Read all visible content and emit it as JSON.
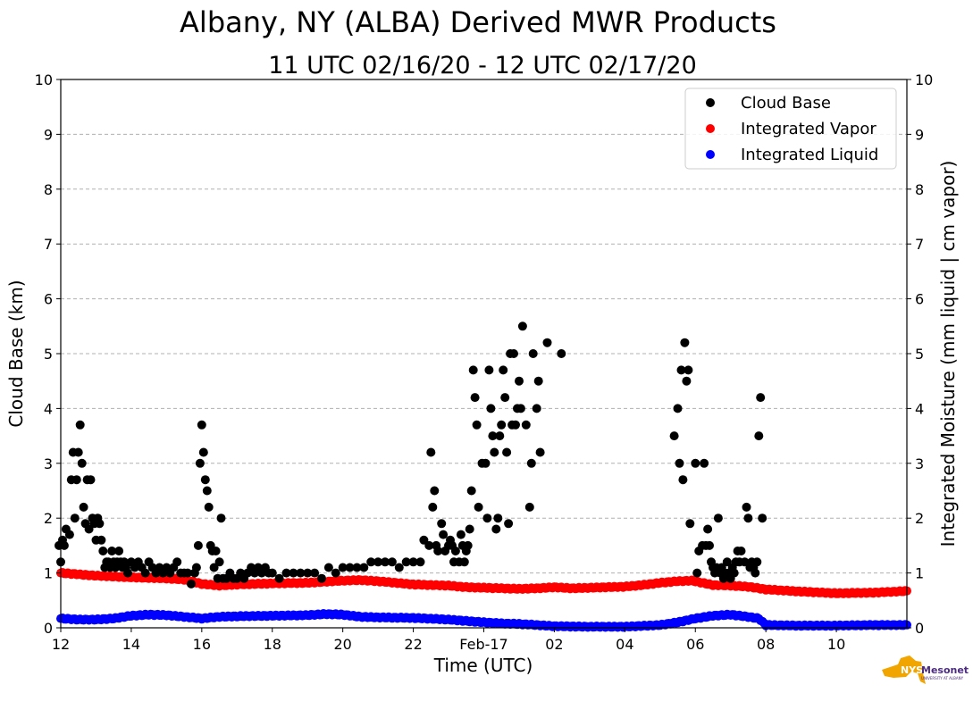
{
  "chart_data": {
    "type": "scatter",
    "title": "Albany, NY (ALBA) Derived MWR Products",
    "subtitle": "11 UTC 02/16/20 - 12 UTC 02/17/20",
    "xlabel": "Time (UTC)",
    "ylabel_left": "Cloud Base (km)",
    "ylabel_right": "Integrated Moisture (mm liquid | cm vapor)",
    "x_unit": "hours since 12 UTC 02/16/20",
    "xlim": [
      0,
      24
    ],
    "ylim": [
      0,
      10
    ],
    "grid": true,
    "legend_position": "top-right",
    "x_ticks": [
      {
        "x": 0,
        "label": "12"
      },
      {
        "x": 2,
        "label": "14"
      },
      {
        "x": 4,
        "label": "16"
      },
      {
        "x": 6,
        "label": "18"
      },
      {
        "x": 8,
        "label": "20"
      },
      {
        "x": 10,
        "label": "22"
      },
      {
        "x": 12,
        "label": "Feb-17"
      },
      {
        "x": 14,
        "label": "02"
      },
      {
        "x": 16,
        "label": "04"
      },
      {
        "x": 18,
        "label": "06"
      },
      {
        "x": 20,
        "label": "08"
      },
      {
        "x": 22,
        "label": "10"
      }
    ],
    "y_ticks": [
      "0",
      "1",
      "2",
      "3",
      "4",
      "5",
      "6",
      "7",
      "8",
      "9",
      "10"
    ],
    "series": [
      {
        "name": "Cloud Base",
        "color": "#000000",
        "points": [
          [
            -0.05,
            1.5
          ],
          [
            0.0,
            1.2
          ],
          [
            0.05,
            1.6
          ],
          [
            0.1,
            1.5
          ],
          [
            0.15,
            1.8
          ],
          [
            0.25,
            1.7
          ],
          [
            0.3,
            2.7
          ],
          [
            0.35,
            3.2
          ],
          [
            0.4,
            2.0
          ],
          [
            0.45,
            2.7
          ],
          [
            0.5,
            3.2
          ],
          [
            0.55,
            3.7
          ],
          [
            0.6,
            3.0
          ],
          [
            0.65,
            2.2
          ],
          [
            0.7,
            1.9
          ],
          [
            0.75,
            2.7
          ],
          [
            0.8,
            1.8
          ],
          [
            0.85,
            2.7
          ],
          [
            0.9,
            2.0
          ],
          [
            0.95,
            1.9
          ],
          [
            1.0,
            1.6
          ],
          [
            1.05,
            2.0
          ],
          [
            1.1,
            1.9
          ],
          [
            1.15,
            1.6
          ],
          [
            1.2,
            1.4
          ],
          [
            1.25,
            1.1
          ],
          [
            1.3,
            1.2
          ],
          [
            1.35,
            1.2
          ],
          [
            1.4,
            1.1
          ],
          [
            1.45,
            1.4
          ],
          [
            1.5,
            1.2
          ],
          [
            1.55,
            1.1
          ],
          [
            1.6,
            1.2
          ],
          [
            1.65,
            1.4
          ],
          [
            1.7,
            1.2
          ],
          [
            1.75,
            1.1
          ],
          [
            1.8,
            1.2
          ],
          [
            1.85,
            1.1
          ],
          [
            1.9,
            1.0
          ],
          [
            2.0,
            1.2
          ],
          [
            2.1,
            1.1
          ],
          [
            2.2,
            1.2
          ],
          [
            2.3,
            1.1
          ],
          [
            2.4,
            1.0
          ],
          [
            2.5,
            1.2
          ],
          [
            2.6,
            1.1
          ],
          [
            2.7,
            1.0
          ],
          [
            2.8,
            1.1
          ],
          [
            2.9,
            1.0
          ],
          [
            3.0,
            1.1
          ],
          [
            3.1,
            1.0
          ],
          [
            3.2,
            1.1
          ],
          [
            3.3,
            1.2
          ],
          [
            3.4,
            1.0
          ],
          [
            3.5,
            1.0
          ],
          [
            3.6,
            1.0
          ],
          [
            3.7,
            0.8
          ],
          [
            3.8,
            1.0
          ],
          [
            3.85,
            1.1
          ],
          [
            3.9,
            1.5
          ],
          [
            3.95,
            3.0
          ],
          [
            4.0,
            3.7
          ],
          [
            4.05,
            3.2
          ],
          [
            4.1,
            2.7
          ],
          [
            4.15,
            2.5
          ],
          [
            4.2,
            2.2
          ],
          [
            4.25,
            1.5
          ],
          [
            4.3,
            1.4
          ],
          [
            4.35,
            1.1
          ],
          [
            4.4,
            1.4
          ],
          [
            4.45,
            0.9
          ],
          [
            4.5,
            1.2
          ],
          [
            4.55,
            2.0
          ],
          [
            4.6,
            0.9
          ],
          [
            4.7,
            0.9
          ],
          [
            4.8,
            1.0
          ],
          [
            4.9,
            0.9
          ],
          [
            5.0,
            0.9
          ],
          [
            5.1,
            1.0
          ],
          [
            5.2,
            0.9
          ],
          [
            5.3,
            1.0
          ],
          [
            5.4,
            1.1
          ],
          [
            5.5,
            1.0
          ],
          [
            5.6,
            1.1
          ],
          [
            5.7,
            1.0
          ],
          [
            5.8,
            1.1
          ],
          [
            5.9,
            1.0
          ],
          [
            6.0,
            1.0
          ],
          [
            6.2,
            0.9
          ],
          [
            6.4,
            1.0
          ],
          [
            6.6,
            1.0
          ],
          [
            6.8,
            1.0
          ],
          [
            7.0,
            1.0
          ],
          [
            7.2,
            1.0
          ],
          [
            7.4,
            0.9
          ],
          [
            7.6,
            1.1
          ],
          [
            7.8,
            1.0
          ],
          [
            8.0,
            1.1
          ],
          [
            8.2,
            1.1
          ],
          [
            8.4,
            1.1
          ],
          [
            8.6,
            1.1
          ],
          [
            8.8,
            1.2
          ],
          [
            9.0,
            1.2
          ],
          [
            9.2,
            1.2
          ],
          [
            9.4,
            1.2
          ],
          [
            9.6,
            1.1
          ],
          [
            9.8,
            1.2
          ],
          [
            10.0,
            1.2
          ],
          [
            10.2,
            1.2
          ],
          [
            10.3,
            1.6
          ],
          [
            10.45,
            1.5
          ],
          [
            10.5,
            3.2
          ],
          [
            10.55,
            2.2
          ],
          [
            10.6,
            2.5
          ],
          [
            10.65,
            1.5
          ],
          [
            10.7,
            1.4
          ],
          [
            10.8,
            1.9
          ],
          [
            10.85,
            1.7
          ],
          [
            10.9,
            1.4
          ],
          [
            11.0,
            1.5
          ],
          [
            11.05,
            1.6
          ],
          [
            11.1,
            1.5
          ],
          [
            11.15,
            1.2
          ],
          [
            11.2,
            1.4
          ],
          [
            11.3,
            1.2
          ],
          [
            11.35,
            1.7
          ],
          [
            11.4,
            1.5
          ],
          [
            11.45,
            1.2
          ],
          [
            11.5,
            1.4
          ],
          [
            11.55,
            1.5
          ],
          [
            11.6,
            1.8
          ],
          [
            11.65,
            2.5
          ],
          [
            11.7,
            4.7
          ],
          [
            11.75,
            4.2
          ],
          [
            11.8,
            3.7
          ],
          [
            11.85,
            2.2
          ],
          [
            11.95,
            3.0
          ],
          [
            12.05,
            3.0
          ],
          [
            12.1,
            2.0
          ],
          [
            12.15,
            4.7
          ],
          [
            12.2,
            4.0
          ],
          [
            12.25,
            3.5
          ],
          [
            12.3,
            3.2
          ],
          [
            12.35,
            1.8
          ],
          [
            12.4,
            2.0
          ],
          [
            12.45,
            3.5
          ],
          [
            12.5,
            3.7
          ],
          [
            12.55,
            4.7
          ],
          [
            12.6,
            4.2
          ],
          [
            12.65,
            3.2
          ],
          [
            12.7,
            1.9
          ],
          [
            12.75,
            5.0
          ],
          [
            12.8,
            3.7
          ],
          [
            12.85,
            5.0
          ],
          [
            12.9,
            3.7
          ],
          [
            12.95,
            4.0
          ],
          [
            13.0,
            4.5
          ],
          [
            13.05,
            4.0
          ],
          [
            13.1,
            5.5
          ],
          [
            13.2,
            3.7
          ],
          [
            13.3,
            2.2
          ],
          [
            13.35,
            3.0
          ],
          [
            13.4,
            5.0
          ],
          [
            13.5,
            4.0
          ],
          [
            13.55,
            4.5
          ],
          [
            13.6,
            3.2
          ],
          [
            13.8,
            5.2
          ],
          [
            14.2,
            5.0
          ],
          [
            17.4,
            3.5
          ],
          [
            17.5,
            4.0
          ],
          [
            17.55,
            3.0
          ],
          [
            17.6,
            4.7
          ],
          [
            17.65,
            2.7
          ],
          [
            17.7,
            5.2
          ],
          [
            17.75,
            4.5
          ],
          [
            17.8,
            4.7
          ],
          [
            17.85,
            1.9
          ],
          [
            18.0,
            3.0
          ],
          [
            18.05,
            1.0
          ],
          [
            18.1,
            1.4
          ],
          [
            18.2,
            1.5
          ],
          [
            18.25,
            3.0
          ],
          [
            18.3,
            1.5
          ],
          [
            18.35,
            1.8
          ],
          [
            18.4,
            1.5
          ],
          [
            18.45,
            1.2
          ],
          [
            18.5,
            1.1
          ],
          [
            18.55,
            1.0
          ],
          [
            18.6,
            1.1
          ],
          [
            18.65,
            2.0
          ],
          [
            18.7,
            1.0
          ],
          [
            18.75,
            1.1
          ],
          [
            18.8,
            0.9
          ],
          [
            18.85,
            1.0
          ],
          [
            18.9,
            1.2
          ],
          [
            18.95,
            1.0
          ],
          [
            19.0,
            0.9
          ],
          [
            19.05,
            1.1
          ],
          [
            19.1,
            1.0
          ],
          [
            19.15,
            1.2
          ],
          [
            19.2,
            1.4
          ],
          [
            19.25,
            1.2
          ],
          [
            19.3,
            1.4
          ],
          [
            19.4,
            1.2
          ],
          [
            19.45,
            2.2
          ],
          [
            19.5,
            2.0
          ],
          [
            19.55,
            1.1
          ],
          [
            19.6,
            1.2
          ],
          [
            19.65,
            1.1
          ],
          [
            19.7,
            1.0
          ],
          [
            19.75,
            1.2
          ],
          [
            19.8,
            3.5
          ],
          [
            19.85,
            4.2
          ],
          [
            19.9,
            2.0
          ]
        ]
      },
      {
        "name": "Integrated Vapor",
        "color": "#ff0000",
        "profile": [
          [
            0,
            1.0
          ],
          [
            1,
            0.95
          ],
          [
            2,
            0.92
          ],
          [
            3,
            0.9
          ],
          [
            3.5,
            0.88
          ],
          [
            4,
            0.8
          ],
          [
            4.5,
            0.77
          ],
          [
            5,
            0.79
          ],
          [
            5.5,
            0.8
          ],
          [
            6,
            0.81
          ],
          [
            7,
            0.82
          ],
          [
            7.5,
            0.84
          ],
          [
            8,
            0.86
          ],
          [
            8.5,
            0.87
          ],
          [
            9,
            0.85
          ],
          [
            9.5,
            0.82
          ],
          [
            10,
            0.79
          ],
          [
            10.5,
            0.78
          ],
          [
            11,
            0.77
          ],
          [
            11.5,
            0.74
          ],
          [
            12,
            0.73
          ],
          [
            12.5,
            0.72
          ],
          [
            13,
            0.71
          ],
          [
            13.5,
            0.72
          ],
          [
            14,
            0.74
          ],
          [
            14.5,
            0.72
          ],
          [
            15,
            0.73
          ],
          [
            15.5,
            0.74
          ],
          [
            16,
            0.75
          ],
          [
            16.5,
            0.78
          ],
          [
            17,
            0.82
          ],
          [
            17.5,
            0.85
          ],
          [
            17.9,
            0.86
          ],
          [
            18.2,
            0.82
          ],
          [
            18.5,
            0.78
          ],
          [
            19,
            0.77
          ],
          [
            19.5,
            0.75
          ],
          [
            20,
            0.7
          ],
          [
            21,
            0.66
          ],
          [
            22,
            0.63
          ],
          [
            23,
            0.64
          ],
          [
            24,
            0.67
          ]
        ]
      },
      {
        "name": "Integrated Liquid",
        "color": "#0000ff",
        "profile": [
          [
            0,
            0.17
          ],
          [
            0.5,
            0.15
          ],
          [
            1,
            0.15
          ],
          [
            1.5,
            0.17
          ],
          [
            2,
            0.22
          ],
          [
            2.5,
            0.24
          ],
          [
            3,
            0.23
          ],
          [
            3.5,
            0.2
          ],
          [
            4,
            0.17
          ],
          [
            4.5,
            0.2
          ],
          [
            5,
            0.21
          ],
          [
            6,
            0.22
          ],
          [
            7,
            0.23
          ],
          [
            7.5,
            0.25
          ],
          [
            8,
            0.24
          ],
          [
            8.5,
            0.2
          ],
          [
            9,
            0.19
          ],
          [
            10,
            0.18
          ],
          [
            11,
            0.15
          ],
          [
            12,
            0.1
          ],
          [
            12.5,
            0.08
          ],
          [
            13,
            0.07
          ],
          [
            13.5,
            0.05
          ],
          [
            14,
            0.03
          ],
          [
            15,
            0.02
          ],
          [
            16,
            0.02
          ],
          [
            17,
            0.05
          ],
          [
            17.5,
            0.1
          ],
          [
            18,
            0.17
          ],
          [
            18.5,
            0.22
          ],
          [
            19,
            0.24
          ],
          [
            19.5,
            0.2
          ],
          [
            19.8,
            0.17
          ],
          [
            20,
            0.05
          ],
          [
            21,
            0.04
          ],
          [
            22,
            0.04
          ],
          [
            23,
            0.05
          ],
          [
            24,
            0.05
          ]
        ]
      }
    ]
  },
  "logo": {
    "name": "NYS Mesonet",
    "line1": "NYS",
    "line2": "Mesonet",
    "tagline": "UNIVERSITY AT ALBANY",
    "colors": {
      "state": "#f0a500",
      "text": "#4b2c7f"
    }
  }
}
